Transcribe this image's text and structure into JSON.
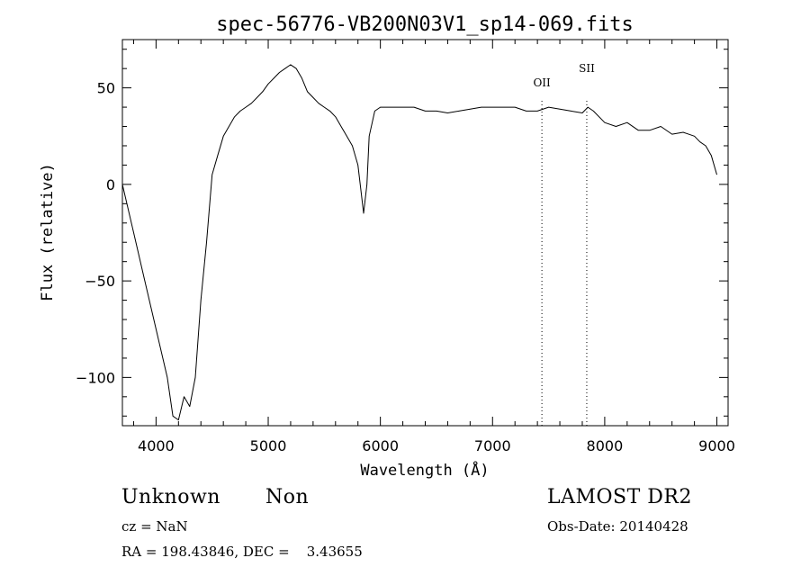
{
  "chart_data": {
    "type": "line",
    "title": "spec-56776-VB200N03V1_sp14-069.fits",
    "xlabel": "Wavelength (Å)",
    "ylabel": "Flux (relative)",
    "xlim": [
      3700,
      9100
    ],
    "ylim": [
      -125,
      75
    ],
    "xticks": [
      4000,
      5000,
      6000,
      7000,
      8000,
      9000
    ],
    "xtick_labels": [
      "4000",
      "5000",
      "6000",
      "7000",
      "8000",
      "9000"
    ],
    "yticks": [
      -100,
      -50,
      0,
      50
    ],
    "ytick_labels": [
      "−100",
      "−50",
      "0",
      "50"
    ],
    "grid": false,
    "line_color": "#000000",
    "spectral_lines": [
      {
        "label": "OII",
        "wavelength": 7440
      },
      {
        "label": "SII",
        "wavelength": 7840
      }
    ],
    "series": [
      {
        "x": [
          3700,
          3800,
          3900,
          4000,
          4100,
          4150,
          4200,
          4250,
          4300,
          4350,
          4400,
          4450,
          4500,
          4550,
          4600,
          4650,
          4700,
          4750,
          4800,
          4850,
          4900,
          4950,
          5000,
          5050,
          5100,
          5150,
          5200,
          5250,
          5300,
          5350,
          5400,
          5450,
          5500,
          5550,
          5600,
          5650,
          5700,
          5750,
          5800,
          5830,
          5850,
          5880,
          5900,
          5950,
          6000,
          6100,
          6200,
          6300,
          6400,
          6500,
          6600,
          6700,
          6800,
          6900,
          7000,
          7100,
          7200,
          7300,
          7400,
          7500,
          7600,
          7700,
          7800,
          7850,
          7900,
          8000,
          8100,
          8200,
          8300,
          8400,
          8500,
          8600,
          8700,
          8800,
          8850,
          8900,
          8950,
          9000
        ],
        "y": [
          0,
          -25,
          -50,
          -75,
          -100,
          -120,
          -122,
          -110,
          -115,
          -100,
          -60,
          -30,
          5,
          15,
          25,
          30,
          35,
          38,
          40,
          42,
          45,
          48,
          52,
          55,
          58,
          60,
          62,
          60,
          55,
          48,
          45,
          42,
          40,
          38,
          35,
          30,
          25,
          20,
          10,
          -5,
          -15,
          0,
          25,
          38,
          40,
          40,
          40,
          40,
          38,
          38,
          37,
          38,
          39,
          40,
          40,
          40,
          40,
          38,
          38,
          40,
          39,
          38,
          37,
          40,
          38,
          32,
          30,
          32,
          28,
          28,
          30,
          26,
          27,
          25,
          22,
          20,
          15,
          5
        ]
      }
    ]
  },
  "info": {
    "object_class": "Unknown",
    "object_subclass": "Non",
    "redshift": "cz = NaN",
    "coordinates": "RA = 198.43846, DEC =    3.43655",
    "survey": "LAMOST DR2",
    "obs_date": "Obs-Date: 20140428"
  }
}
